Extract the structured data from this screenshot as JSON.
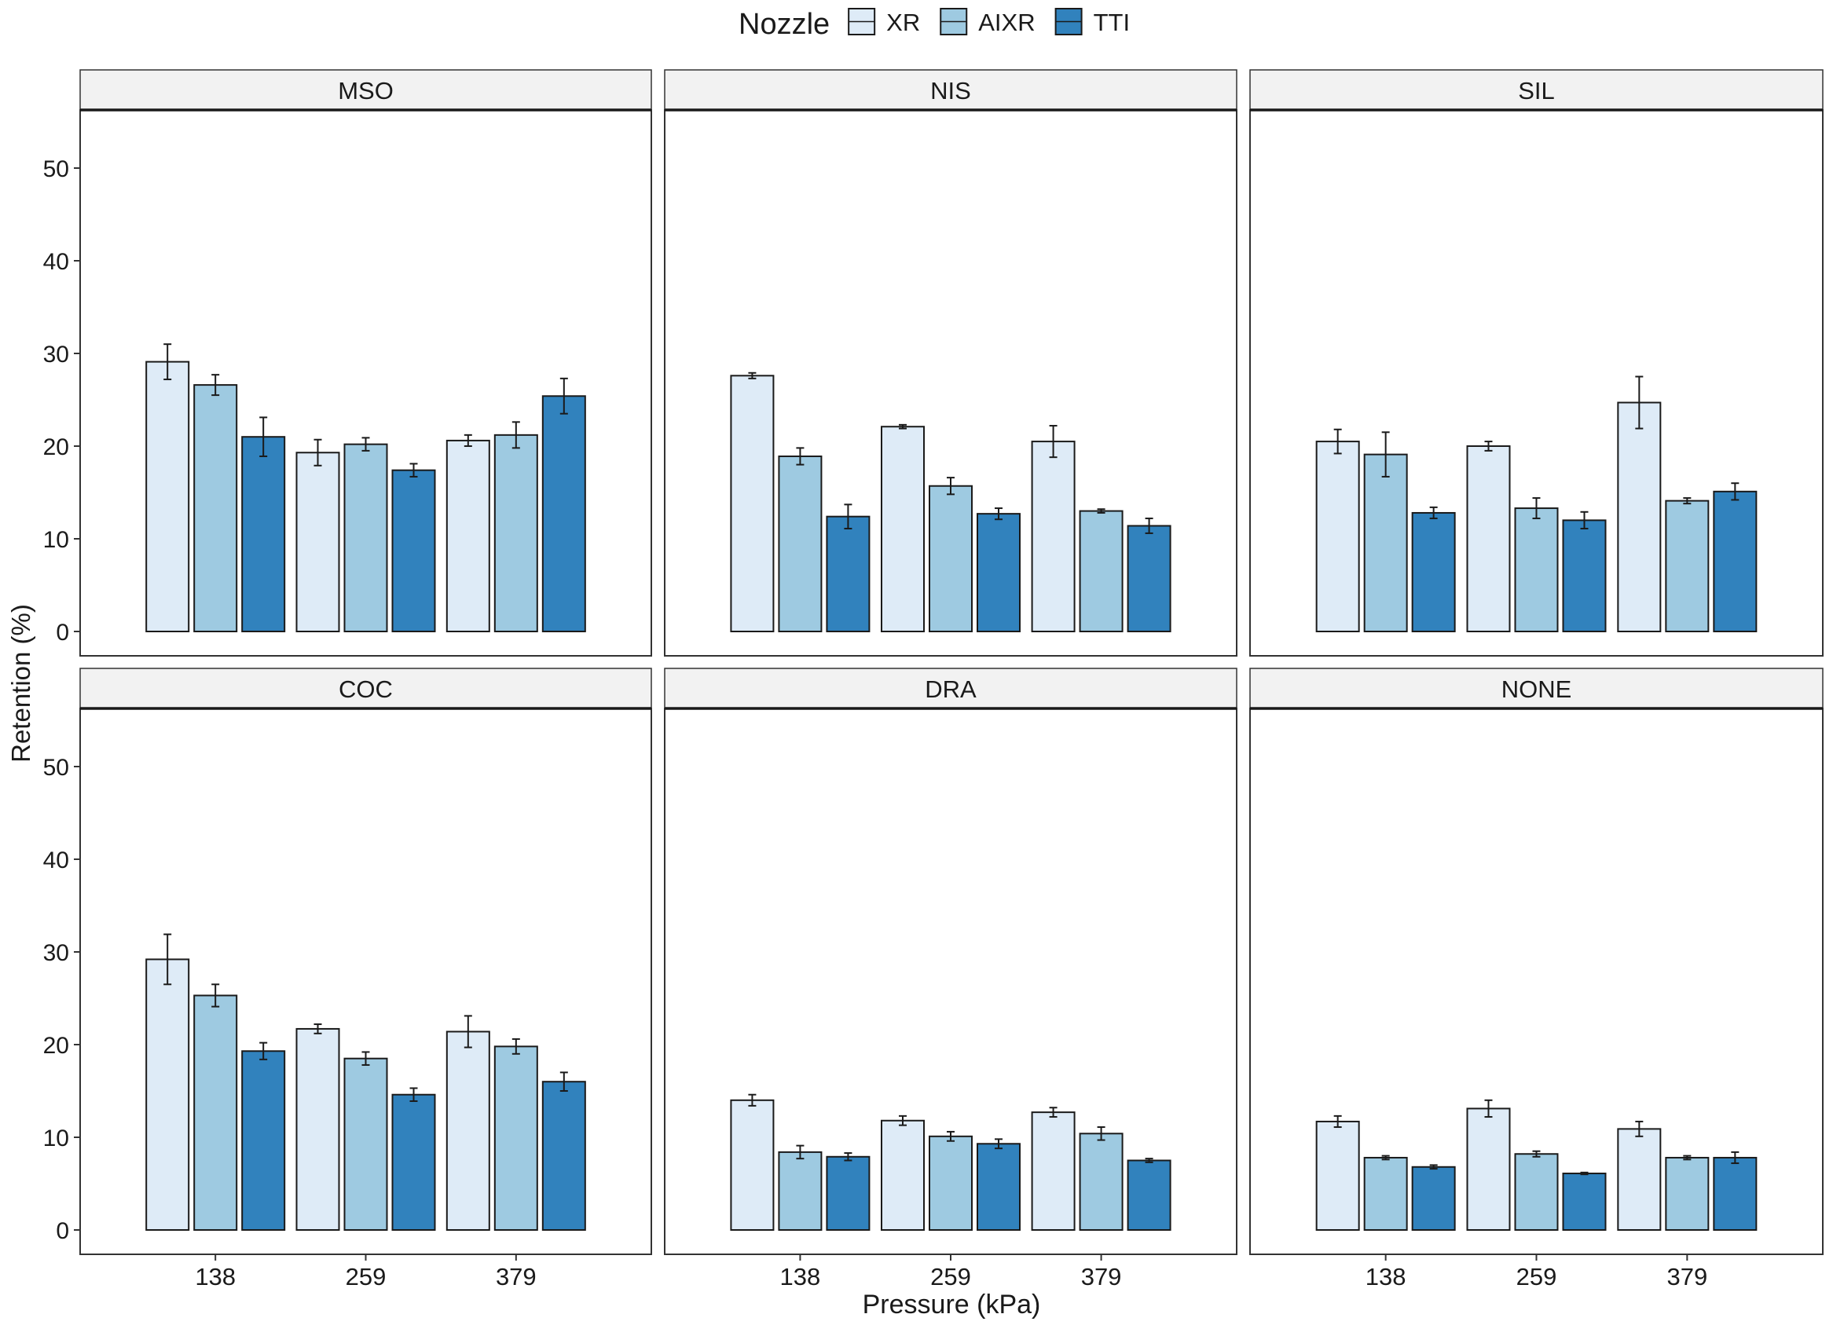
{
  "chart_data": {
    "type": "bar",
    "layout": "facet-grid-2x3",
    "xlabel": "Pressure (kPa)",
    "ylabel": "Retention (%)",
    "ylim": [
      0,
      55
    ],
    "yticks": [
      0,
      10,
      20,
      30,
      40,
      50
    ],
    "categories": [
      "138",
      "259",
      "379"
    ],
    "legend": {
      "title": "Nozzle",
      "position": "top",
      "entries": [
        {
          "name": "XR",
          "color": "#deebf7"
        },
        {
          "name": "AIXR",
          "color": "#9ecae1"
        },
        {
          "name": "TTI",
          "color": "#3182bd"
        }
      ]
    },
    "grid": false,
    "facets": [
      {
        "label": "MSO",
        "series": [
          {
            "name": "XR",
            "values": [
              29.1,
              19.3,
              20.6
            ],
            "errors": [
              1.9,
              1.4,
              0.6
            ]
          },
          {
            "name": "AIXR",
            "values": [
              26.6,
              20.2,
              21.2
            ],
            "errors": [
              1.1,
              0.7,
              1.4
            ]
          },
          {
            "name": "TTI",
            "values": [
              21.0,
              17.4,
              25.4
            ],
            "errors": [
              2.1,
              0.7,
              1.9
            ]
          }
        ]
      },
      {
        "label": "NIS",
        "series": [
          {
            "name": "XR",
            "values": [
              27.6,
              22.1,
              20.5
            ],
            "errors": [
              0.3,
              0.2,
              1.7
            ]
          },
          {
            "name": "AIXR",
            "values": [
              18.9,
              15.7,
              13.0
            ],
            "errors": [
              0.9,
              0.9,
              0.2
            ]
          },
          {
            "name": "TTI",
            "values": [
              12.4,
              12.7,
              11.4
            ],
            "errors": [
              1.3,
              0.6,
              0.8
            ]
          }
        ]
      },
      {
        "label": "SIL",
        "series": [
          {
            "name": "XR",
            "values": [
              20.5,
              20.0,
              24.7
            ],
            "errors": [
              1.3,
              0.5,
              2.8
            ]
          },
          {
            "name": "AIXR",
            "values": [
              19.1,
              13.3,
              14.1
            ],
            "errors": [
              2.4,
              1.1,
              0.3
            ]
          },
          {
            "name": "TTI",
            "values": [
              12.8,
              12.0,
              15.1
            ],
            "errors": [
              0.6,
              0.9,
              0.9
            ]
          }
        ]
      },
      {
        "label": "COC",
        "series": [
          {
            "name": "XR",
            "values": [
              29.2,
              21.7,
              21.4
            ],
            "errors": [
              2.7,
              0.5,
              1.7
            ]
          },
          {
            "name": "AIXR",
            "values": [
              25.3,
              18.5,
              19.8
            ],
            "errors": [
              1.2,
              0.7,
              0.8
            ]
          },
          {
            "name": "TTI",
            "values": [
              19.3,
              14.6,
              16.0
            ],
            "errors": [
              0.9,
              0.7,
              1.0
            ]
          }
        ]
      },
      {
        "label": "DRA",
        "series": [
          {
            "name": "XR",
            "values": [
              14.0,
              11.8,
              12.7
            ],
            "errors": [
              0.6,
              0.5,
              0.5
            ]
          },
          {
            "name": "AIXR",
            "values": [
              8.4,
              10.1,
              10.4
            ],
            "errors": [
              0.7,
              0.5,
              0.7
            ]
          },
          {
            "name": "TTI",
            "values": [
              7.9,
              9.3,
              7.5
            ],
            "errors": [
              0.4,
              0.5,
              0.2
            ]
          }
        ]
      },
      {
        "label": "NONE",
        "series": [
          {
            "name": "XR",
            "values": [
              11.7,
              13.1,
              10.9
            ],
            "errors": [
              0.6,
              0.9,
              0.8
            ]
          },
          {
            "name": "AIXR",
            "values": [
              7.8,
              8.2,
              7.8
            ],
            "errors": [
              0.2,
              0.3,
              0.2
            ]
          },
          {
            "name": "TTI",
            "values": [
              6.8,
              6.1,
              7.8
            ],
            "errors": [
              0.2,
              0.1,
              0.6
            ]
          }
        ]
      }
    ]
  }
}
